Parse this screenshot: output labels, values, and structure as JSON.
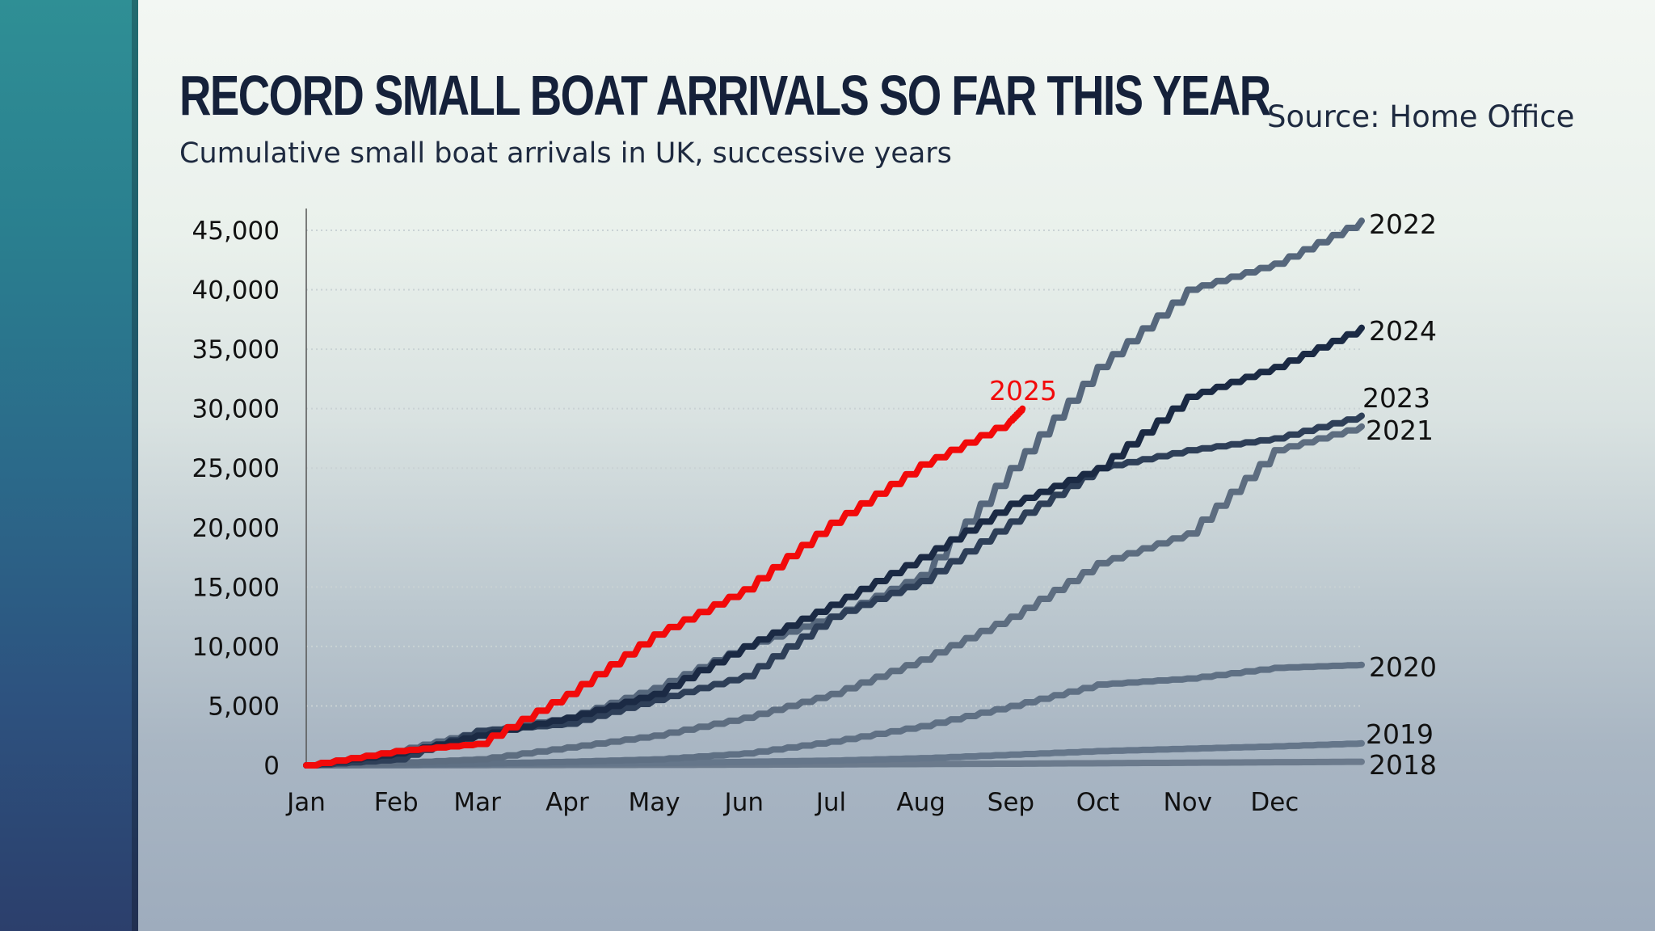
{
  "header": {
    "title": "RECORD SMALL BOAT ARRIVALS SO FAR THIS YEAR",
    "subtitle": "Cumulative small boat arrivals in UK, successive years",
    "source": "Source: Home Office"
  },
  "chart_data": {
    "type": "line",
    "title": "RECORD SMALL BOAT ARRIVALS SO FAR THIS YEAR",
    "subtitle": "Cumulative small boat arrivals in UK, successive years",
    "xlabel": "",
    "ylabel": "",
    "ylim": [
      0,
      45000
    ],
    "yticks": [
      "0",
      "5,000",
      "10,000",
      "15,000",
      "20,000",
      "25,000",
      "30,000",
      "35,000",
      "40,000",
      "45,000"
    ],
    "ytick_values": [
      0,
      5000,
      10000,
      15000,
      20000,
      25000,
      30000,
      35000,
      40000,
      45000
    ],
    "xticks": [
      "Jan",
      "Feb",
      "Mar",
      "Apr",
      "May",
      "Jun",
      "Jul",
      "Aug",
      "Sep",
      "Oct",
      "Nov",
      "Dec"
    ],
    "grid": "horizontal dotted",
    "legend": "inline labels at line ends",
    "x": [
      "01-01",
      "02-01",
      "03-01",
      "04-01",
      "05-01",
      "06-01",
      "07-01",
      "08-01",
      "09-01",
      "10-01",
      "11-01",
      "12-01",
      "12-31"
    ],
    "series": [
      {
        "name": "2018",
        "color": "#6b7a8c",
        "values": [
          0,
          10,
          20,
          30,
          40,
          60,
          80,
          110,
          140,
          180,
          220,
          260,
          300
        ]
      },
      {
        "name": "2019",
        "color": "#65768a",
        "values": [
          0,
          50,
          100,
          150,
          200,
          300,
          400,
          600,
          900,
          1200,
          1400,
          1600,
          1850
        ]
      },
      {
        "name": "2020",
        "color": "#5f7084",
        "values": [
          0,
          50,
          150,
          300,
          500,
          1000,
          2000,
          3300,
          5000,
          6800,
          7300,
          8200,
          8450
        ]
      },
      {
        "name": "2021",
        "color": "#5d6d80",
        "values": [
          0,
          200,
          500,
          1500,
          2500,
          4000,
          6000,
          8900,
          12500,
          17000,
          19500,
          26500,
          28500
        ]
      },
      {
        "name": "2022",
        "color": "#56677c",
        "values": [
          0,
          1200,
          2800,
          4000,
          6500,
          10000,
          12500,
          16000,
          25000,
          33500,
          40000,
          42200,
          45800
        ]
      },
      {
        "name": "2023",
        "color": "#2e3f58",
        "values": [
          0,
          500,
          2900,
          3500,
          5500,
          7500,
          12500,
          15500,
          20500,
          25000,
          26500,
          27500,
          29400
        ]
      },
      {
        "name": "2024",
        "color": "#1b2a44",
        "values": [
          0,
          1000,
          2500,
          4000,
          6000,
          10000,
          13500,
          17500,
          22000,
          25000,
          31000,
          33500,
          36800
        ]
      },
      {
        "name": "2025",
        "color": "#f20a0a",
        "values": [
          0,
          1200,
          1800,
          6000,
          11000,
          14800,
          20400,
          25300,
          29000,
          30000
        ],
        "x": [
          "01-01",
          "02-01",
          "03-01",
          "04-01",
          "05-01",
          "06-01",
          "07-01",
          "08-01",
          "09-01",
          "09-05"
        ]
      }
    ]
  }
}
